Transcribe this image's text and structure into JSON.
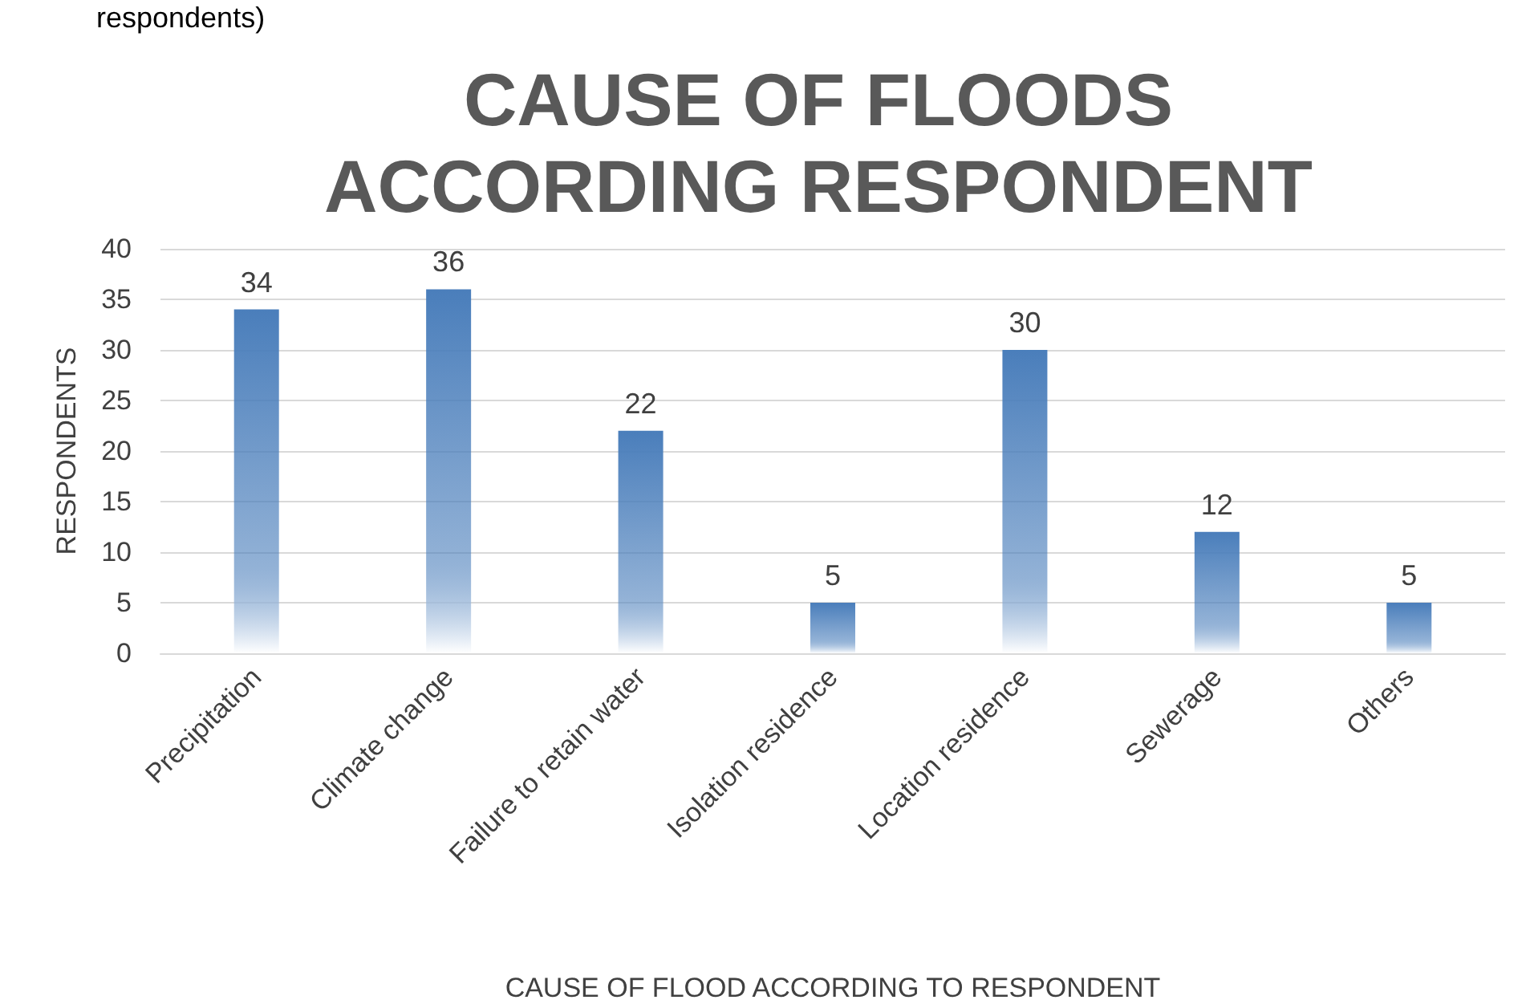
{
  "chart_data": {
    "type": "bar",
    "title": "CAUSE OF FLOODS\nACCORDING RESPONDENT",
    "categories": [
      "Precipitation",
      "Climate change",
      "Failure to retain water",
      "Isolation residence",
      "Location residence",
      "Sewerage",
      "Others"
    ],
    "values": [
      34,
      36,
      22,
      5,
      30,
      12,
      5
    ],
    "color": "#4a7ebb",
    "ylim": [
      0,
      40
    ],
    "yticks": [
      0,
      5,
      10,
      15,
      20,
      25,
      30,
      35,
      40
    ],
    "grid": "y",
    "data_labels": true,
    "xlabel": "CAUSE OF FLOOD ACCORDING TO RESPONDENT",
    "ylabel": "RESPONDENTS",
    "annotations": [
      "respondents)"
    ]
  }
}
